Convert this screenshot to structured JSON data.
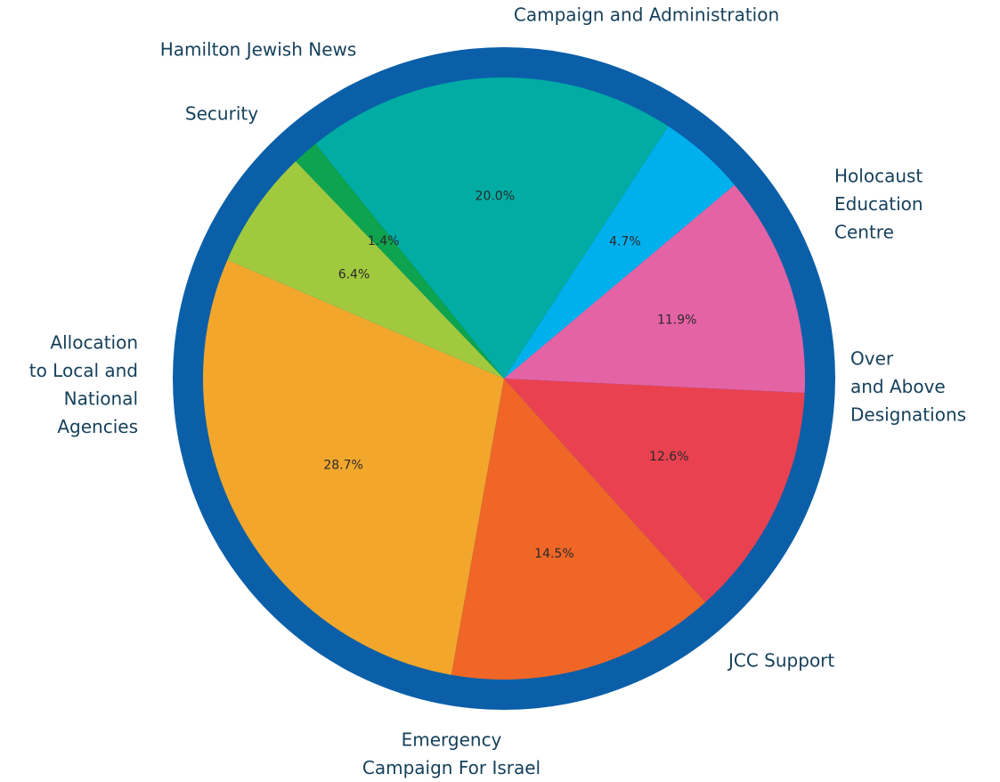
{
  "chart_data": {
    "type": "pie",
    "title": "",
    "border_color": "#0a5fa8",
    "start_angle_deg": 156.8,
    "direction": "counterclockwise",
    "slices": [
      {
        "label": "Allocation to Local and National Agencies",
        "label_lines": [
          "Allocation",
          "to Local and",
          "National",
          "Agencies"
        ],
        "value": 28.7,
        "pct_text": "28.7%",
        "color": "#f2a72c"
      },
      {
        "label": "Emergency Campaign For Israel",
        "label_lines": [
          "Emergency",
          "Campaign For Israel"
        ],
        "value": 14.5,
        "pct_text": "14.5%",
        "color": "#ef6627"
      },
      {
        "label": "JCC Support",
        "label_lines": [
          "JCC Support"
        ],
        "value": 12.6,
        "pct_text": "12.6%",
        "color": "#ea4150"
      },
      {
        "label": "Over and Above Designations",
        "label_lines": [
          "Over",
          "and Above",
          "Designations"
        ],
        "value": 11.9,
        "pct_text": "11.9%",
        "color": "#e463a5"
      },
      {
        "label": "Holocaust Education Centre",
        "label_lines": [
          "Holocaust",
          "Education",
          "Centre"
        ],
        "value": 4.7,
        "pct_text": "4.7%",
        "color": "#00b0ed"
      },
      {
        "label": "Campaign and Administration",
        "label_lines": [
          "Campaign and Administration"
        ],
        "value": 20.0,
        "pct_text": "20.0%",
        "color": "#00aca4"
      },
      {
        "label": "Hamilton Jewish News",
        "label_lines": [
          "Hamilton Jewish News"
        ],
        "value": 1.4,
        "pct_text": "1.4%",
        "color": "#0da34f"
      },
      {
        "label": "Security",
        "label_lines": [
          "Security"
        ],
        "value": 6.4,
        "pct_text": "6.4%",
        "color": "#a0c93e"
      }
    ]
  }
}
